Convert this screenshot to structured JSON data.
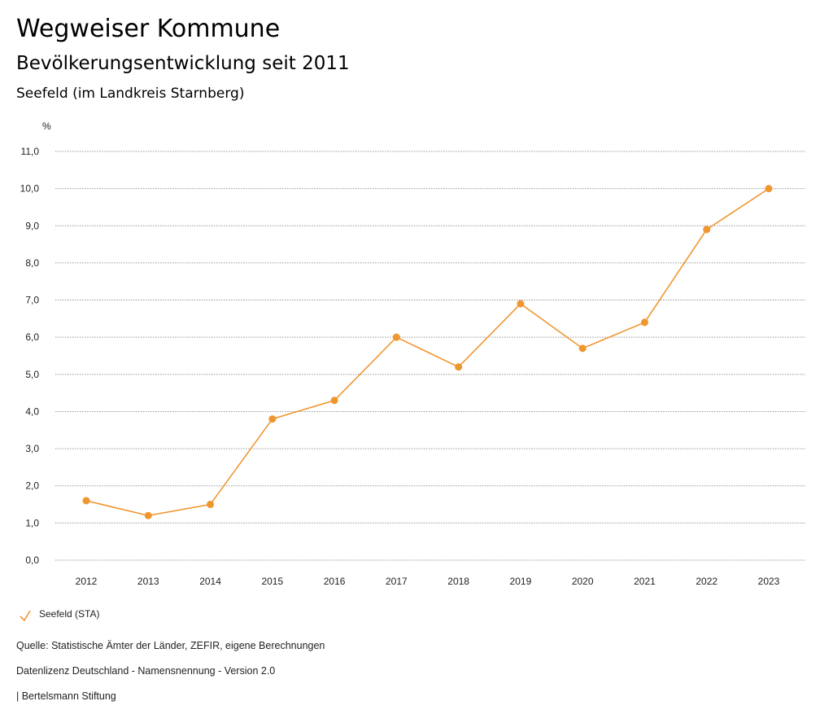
{
  "header": {
    "title": "Wegweiser Kommune",
    "subtitle": "Bevölkerungsentwicklung seit 2011",
    "region": "Seefeld (im Landkreis Starnberg)"
  },
  "chart_data": {
    "type": "line",
    "ylabel": "%",
    "ylim": [
      0,
      11
    ],
    "yticks": [
      "0,0",
      "1,0",
      "2,0",
      "3,0",
      "4,0",
      "5,0",
      "6,0",
      "7,0",
      "8,0",
      "9,0",
      "10,0",
      "11,0"
    ],
    "categories": [
      "2012",
      "2013",
      "2014",
      "2015",
      "2016",
      "2017",
      "2018",
      "2019",
      "2020",
      "2021",
      "2022",
      "2023"
    ],
    "series": [
      {
        "name": "Seefeld (STA)",
        "color": "#f0962f",
        "values": [
          1.6,
          1.2,
          1.5,
          3.8,
          4.3,
          6.0,
          5.2,
          6.9,
          5.7,
          6.4,
          8.9,
          10.0
        ]
      }
    ],
    "grid": true,
    "legend": "bottom-left"
  },
  "footer": {
    "source": "Quelle: Statistische Ämter der Länder, ZEFIR, eigene Berechnungen",
    "license": "Datenlizenz Deutschland - Namensnennung - Version 2.0",
    "brand": "| Bertelsmann Stiftung"
  }
}
